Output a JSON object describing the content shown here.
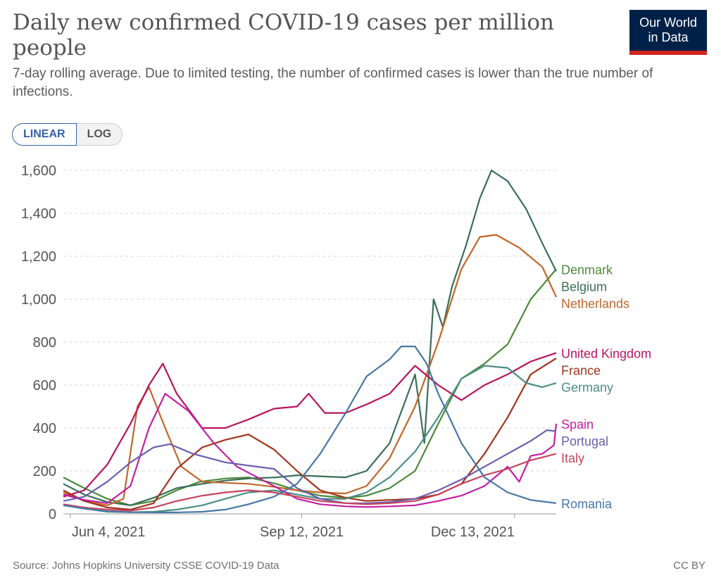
{
  "header": {
    "title": "Daily new confirmed COVID-19 cases per million people",
    "subtitle": "7-day rolling average. Due to limited testing, the number of confirmed cases is lower than the true number of infections.",
    "logo_line1": "Our World",
    "logo_line2": "in Data"
  },
  "toggle": {
    "linear_label": "LINEAR",
    "log_label": "LOG",
    "selected": "LINEAR"
  },
  "footer": {
    "source": "Source: Johns Hopkins University CSSE COVID-19 Data",
    "license": "CC BY"
  },
  "chart_data": {
    "type": "line",
    "xlabel": "",
    "ylabel": "",
    "x_unit": "date",
    "x_range": [
      "2021-06-01",
      "2021-12-31"
    ],
    "x_ticks": [
      [
        "2021-06-04",
        "Jun 4, 2021"
      ],
      [
        "2021-09-12",
        "Sep 12, 2021"
      ],
      [
        "2021-12-13",
        "Dec 13, 2021"
      ]
    ],
    "ylim": [
      0,
      1600
    ],
    "y_ticks": [
      0,
      200,
      400,
      600,
      800,
      1000,
      1200,
      1400,
      1600
    ],
    "y_tick_labels": [
      "0",
      "200",
      "400",
      "600",
      "800",
      "1,000",
      "1,200",
      "1,400",
      "1,600"
    ],
    "grid": "horizontal-dashed",
    "legend": "right-end-labels",
    "series": [
      {
        "name": "Denmark",
        "color": "#4c8a3a",
        "points": [
          [
            "2021-06-01",
            170
          ],
          [
            "2021-06-10",
            120
          ],
          [
            "2021-06-20",
            70
          ],
          [
            "2021-06-30",
            40
          ],
          [
            "2021-07-10",
            60
          ],
          [
            "2021-07-20",
            110
          ],
          [
            "2021-07-30",
            150
          ],
          [
            "2021-08-10",
            165
          ],
          [
            "2021-08-20",
            170
          ],
          [
            "2021-09-01",
            140
          ],
          [
            "2021-09-10",
            110
          ],
          [
            "2021-09-20",
            85
          ],
          [
            "2021-10-01",
            75
          ],
          [
            "2021-10-10",
            85
          ],
          [
            "2021-10-20",
            120
          ],
          [
            "2021-10-31",
            200
          ],
          [
            "2021-11-10",
            420
          ],
          [
            "2021-11-20",
            630
          ],
          [
            "2021-11-30",
            700
          ],
          [
            "2021-12-10",
            790
          ],
          [
            "2021-12-20",
            1000
          ],
          [
            "2021-12-31",
            1140
          ]
        ]
      },
      {
        "name": "Belgium",
        "color": "#3a6e58",
        "points": [
          [
            "2021-06-01",
            140
          ],
          [
            "2021-06-10",
            90
          ],
          [
            "2021-06-20",
            55
          ],
          [
            "2021-06-30",
            40
          ],
          [
            "2021-07-10",
            75
          ],
          [
            "2021-07-20",
            120
          ],
          [
            "2021-07-31",
            140
          ],
          [
            "2021-08-10",
            155
          ],
          [
            "2021-08-20",
            165
          ],
          [
            "2021-09-01",
            170
          ],
          [
            "2021-09-10",
            180
          ],
          [
            "2021-09-20",
            175
          ],
          [
            "2021-10-01",
            170
          ],
          [
            "2021-10-10",
            200
          ],
          [
            "2021-10-20",
            330
          ],
          [
            "2021-10-31",
            650
          ],
          [
            "2021-11-04",
            330
          ],
          [
            "2021-11-08",
            1000
          ],
          [
            "2021-11-12",
            870
          ],
          [
            "2021-11-16",
            1060
          ],
          [
            "2021-11-22",
            1250
          ],
          [
            "2021-11-28",
            1470
          ],
          [
            "2021-12-03",
            1600
          ],
          [
            "2021-12-10",
            1550
          ],
          [
            "2021-12-18",
            1420
          ],
          [
            "2021-12-25",
            1260
          ],
          [
            "2021-12-31",
            1130
          ]
        ]
      },
      {
        "name": "Netherlands",
        "color": "#c0662a",
        "points": [
          [
            "2021-06-01",
            100
          ],
          [
            "2021-06-10",
            60
          ],
          [
            "2021-06-20",
            40
          ],
          [
            "2021-06-27",
            70
          ],
          [
            "2021-07-03",
            500
          ],
          [
            "2021-07-08",
            590
          ],
          [
            "2021-07-15",
            400
          ],
          [
            "2021-07-22",
            220
          ],
          [
            "2021-07-31",
            150
          ],
          [
            "2021-08-10",
            145
          ],
          [
            "2021-08-20",
            140
          ],
          [
            "2021-09-01",
            125
          ],
          [
            "2021-09-10",
            110
          ],
          [
            "2021-09-20",
            100
          ],
          [
            "2021-10-01",
            95
          ],
          [
            "2021-10-10",
            130
          ],
          [
            "2021-10-20",
            260
          ],
          [
            "2021-10-31",
            500
          ],
          [
            "2021-11-10",
            800
          ],
          [
            "2021-11-20",
            1140
          ],
          [
            "2021-11-28",
            1290
          ],
          [
            "2021-12-05",
            1300
          ],
          [
            "2021-12-15",
            1240
          ],
          [
            "2021-12-25",
            1150
          ],
          [
            "2021-12-31",
            1010
          ]
        ]
      },
      {
        "name": "United Kingdom",
        "color": "#b8145f",
        "points": [
          [
            "2021-06-01",
            80
          ],
          [
            "2021-06-10",
            110
          ],
          [
            "2021-06-20",
            230
          ],
          [
            "2021-06-30",
            420
          ],
          [
            "2021-07-08",
            600
          ],
          [
            "2021-07-14",
            700
          ],
          [
            "2021-07-20",
            560
          ],
          [
            "2021-07-31",
            400
          ],
          [
            "2021-08-10",
            400
          ],
          [
            "2021-08-20",
            440
          ],
          [
            "2021-08-31",
            490
          ],
          [
            "2021-09-10",
            500
          ],
          [
            "2021-09-15",
            560
          ],
          [
            "2021-09-22",
            470
          ],
          [
            "2021-10-01",
            470
          ],
          [
            "2021-10-10",
            510
          ],
          [
            "2021-10-20",
            560
          ],
          [
            "2021-10-31",
            690
          ],
          [
            "2021-11-10",
            600
          ],
          [
            "2021-11-20",
            530
          ],
          [
            "2021-11-30",
            600
          ],
          [
            "2021-12-10",
            650
          ],
          [
            "2021-12-20",
            710
          ],
          [
            "2021-12-31",
            750
          ]
        ]
      },
      {
        "name": "France",
        "color": "#a2341d",
        "points": [
          [
            "2021-06-01",
            110
          ],
          [
            "2021-06-10",
            60
          ],
          [
            "2021-06-20",
            30
          ],
          [
            "2021-06-30",
            20
          ],
          [
            "2021-07-10",
            50
          ],
          [
            "2021-07-20",
            210
          ],
          [
            "2021-07-31",
            310
          ],
          [
            "2021-08-10",
            345
          ],
          [
            "2021-08-20",
            370
          ],
          [
            "2021-08-31",
            300
          ],
          [
            "2021-09-10",
            200
          ],
          [
            "2021-09-20",
            110
          ],
          [
            "2021-10-01",
            75
          ],
          [
            "2021-10-10",
            60
          ],
          [
            "2021-10-20",
            65
          ],
          [
            "2021-10-31",
            70
          ],
          [
            "2021-11-10",
            90
          ],
          [
            "2021-11-20",
            140
          ],
          [
            "2021-11-30",
            280
          ],
          [
            "2021-12-10",
            450
          ],
          [
            "2021-12-20",
            650
          ],
          [
            "2021-12-31",
            725
          ]
        ]
      },
      {
        "name": "Germany",
        "color": "#4b8e85",
        "points": [
          [
            "2021-06-01",
            40
          ],
          [
            "2021-06-10",
            25
          ],
          [
            "2021-06-20",
            10
          ],
          [
            "2021-06-30",
            8
          ],
          [
            "2021-07-10",
            10
          ],
          [
            "2021-07-20",
            20
          ],
          [
            "2021-07-31",
            40
          ],
          [
            "2021-08-10",
            70
          ],
          [
            "2021-08-20",
            100
          ],
          [
            "2021-08-31",
            110
          ],
          [
            "2021-09-10",
            90
          ],
          [
            "2021-09-20",
            70
          ],
          [
            "2021-10-01",
            70
          ],
          [
            "2021-10-10",
            100
          ],
          [
            "2021-10-20",
            170
          ],
          [
            "2021-10-31",
            290
          ],
          [
            "2021-11-10",
            450
          ],
          [
            "2021-11-20",
            630
          ],
          [
            "2021-11-30",
            690
          ],
          [
            "2021-12-10",
            680
          ],
          [
            "2021-12-18",
            610
          ],
          [
            "2021-12-25",
            590
          ],
          [
            "2021-12-31",
            610
          ]
        ]
      },
      {
        "name": "Spain",
        "color": "#c41fa2",
        "points": [
          [
            "2021-06-01",
            90
          ],
          [
            "2021-06-10",
            65
          ],
          [
            "2021-06-20",
            50
          ],
          [
            "2021-06-30",
            130
          ],
          [
            "2021-07-08",
            400
          ],
          [
            "2021-07-15",
            560
          ],
          [
            "2021-07-25",
            480
          ],
          [
            "2021-08-05",
            330
          ],
          [
            "2021-08-15",
            220
          ],
          [
            "2021-08-31",
            130
          ],
          [
            "2021-09-10",
            70
          ],
          [
            "2021-09-20",
            45
          ],
          [
            "2021-10-01",
            35
          ],
          [
            "2021-10-10",
            32
          ],
          [
            "2021-10-20",
            35
          ],
          [
            "2021-10-31",
            40
          ],
          [
            "2021-11-10",
            60
          ],
          [
            "2021-11-20",
            85
          ],
          [
            "2021-11-30",
            130
          ],
          [
            "2021-12-10",
            220
          ],
          [
            "2021-12-15",
            150
          ],
          [
            "2021-12-20",
            270
          ],
          [
            "2021-12-25",
            280
          ],
          [
            "2021-12-30",
            320
          ],
          [
            "2021-12-31",
            420
          ]
        ]
      },
      {
        "name": "Portugal",
        "color": "#6a5fae",
        "points": [
          [
            "2021-06-01",
            60
          ],
          [
            "2021-06-10",
            80
          ],
          [
            "2021-06-20",
            150
          ],
          [
            "2021-06-30",
            240
          ],
          [
            "2021-07-10",
            310
          ],
          [
            "2021-07-17",
            325
          ],
          [
            "2021-07-27",
            280
          ],
          [
            "2021-08-10",
            240
          ],
          [
            "2021-08-20",
            225
          ],
          [
            "2021-08-31",
            210
          ],
          [
            "2021-09-10",
            120
          ],
          [
            "2021-09-20",
            70
          ],
          [
            "2021-10-01",
            50
          ],
          [
            "2021-10-10",
            50
          ],
          [
            "2021-10-20",
            55
          ],
          [
            "2021-10-31",
            70
          ],
          [
            "2021-11-10",
            110
          ],
          [
            "2021-11-20",
            160
          ],
          [
            "2021-11-30",
            220
          ],
          [
            "2021-12-10",
            280
          ],
          [
            "2021-12-20",
            340
          ],
          [
            "2021-12-27",
            390
          ],
          [
            "2021-12-31",
            385
          ]
        ]
      },
      {
        "name": "Italy",
        "color": "#c4455e",
        "points": [
          [
            "2021-06-01",
            45
          ],
          [
            "2021-06-10",
            30
          ],
          [
            "2021-06-20",
            20
          ],
          [
            "2021-06-30",
            15
          ],
          [
            "2021-07-10",
            30
          ],
          [
            "2021-07-20",
            60
          ],
          [
            "2021-07-31",
            85
          ],
          [
            "2021-08-10",
            100
          ],
          [
            "2021-08-20",
            110
          ],
          [
            "2021-08-31",
            100
          ],
          [
            "2021-09-10",
            80
          ],
          [
            "2021-09-20",
            60
          ],
          [
            "2021-10-01",
            50
          ],
          [
            "2021-10-10",
            45
          ],
          [
            "2021-10-20",
            50
          ],
          [
            "2021-10-31",
            60
          ],
          [
            "2021-11-10",
            90
          ],
          [
            "2021-11-20",
            140
          ],
          [
            "2021-11-30",
            180
          ],
          [
            "2021-12-10",
            210
          ],
          [
            "2021-12-20",
            250
          ],
          [
            "2021-12-31",
            280
          ]
        ]
      },
      {
        "name": "Romania",
        "color": "#4777a7",
        "points": [
          [
            "2021-06-01",
            40
          ],
          [
            "2021-06-10",
            25
          ],
          [
            "2021-06-20",
            12
          ],
          [
            "2021-06-30",
            8
          ],
          [
            "2021-07-10",
            7
          ],
          [
            "2021-07-20",
            7
          ],
          [
            "2021-07-31",
            10
          ],
          [
            "2021-08-10",
            20
          ],
          [
            "2021-08-20",
            45
          ],
          [
            "2021-08-31",
            80
          ],
          [
            "2021-09-10",
            140
          ],
          [
            "2021-09-20",
            280
          ],
          [
            "2021-10-01",
            470
          ],
          [
            "2021-10-10",
            640
          ],
          [
            "2021-10-20",
            720
          ],
          [
            "2021-10-25",
            780
          ],
          [
            "2021-10-31",
            780
          ],
          [
            "2021-11-05",
            700
          ],
          [
            "2021-11-10",
            560
          ],
          [
            "2021-11-20",
            330
          ],
          [
            "2021-11-30",
            170
          ],
          [
            "2021-12-10",
            100
          ],
          [
            "2021-12-20",
            65
          ],
          [
            "2021-12-31",
            50
          ]
        ]
      }
    ]
  }
}
